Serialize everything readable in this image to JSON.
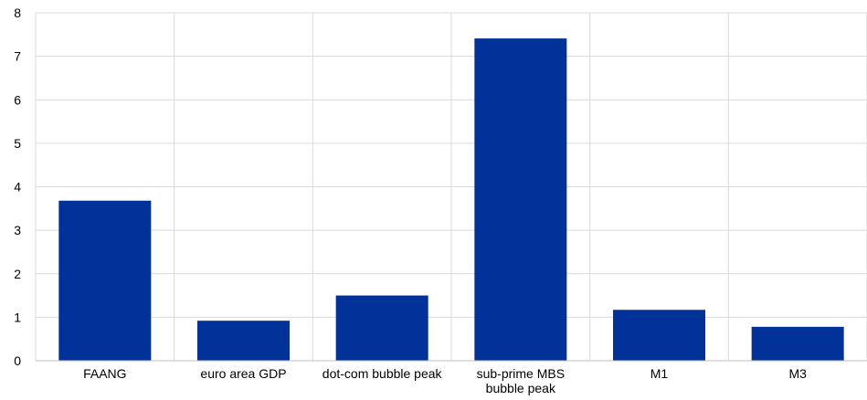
{
  "chart_data": {
    "type": "bar",
    "categories": [
      [
        "FAANG"
      ],
      [
        "euro area GDP"
      ],
      [
        "dot-com bubble peak"
      ],
      [
        "sub-prime MBS",
        "bubble peak"
      ],
      [
        "M1"
      ],
      [
        "M3"
      ]
    ],
    "values": [
      3.68,
      0.92,
      1.5,
      7.41,
      1.17,
      0.78
    ],
    "ylim": [
      0,
      8
    ],
    "yticks": [
      "0",
      "1",
      "2",
      "3",
      "4",
      "5",
      "6",
      "7",
      "8"
    ],
    "grid": true,
    "colors": {
      "bar": "#003299",
      "grid": "#d9d9d9",
      "axis": "#bfbfbf"
    }
  }
}
